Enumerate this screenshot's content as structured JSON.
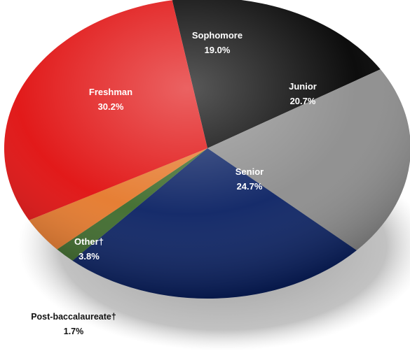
{
  "chart_data": {
    "type": "pie",
    "title": "",
    "slices": [
      {
        "label": "Sophomore",
        "value": 19.0,
        "value_label": "19.0%",
        "color": "#000000",
        "text_color": "#ffffff"
      },
      {
        "label": "Junior",
        "value": 20.7,
        "value_label": "20.7%",
        "color": "#8c8c8c",
        "text_color": "#ffffff"
      },
      {
        "label": "Senior",
        "value": 24.7,
        "value_label": "24.7%",
        "color": "#0a2163",
        "text_color": "#ffffff"
      },
      {
        "label": "Post-baccalaureate†",
        "value": 1.7,
        "value_label": "1.7%",
        "color": "#3d6a2a",
        "text_color": "#111111"
      },
      {
        "label": "Other†",
        "value": 3.8,
        "value_label": "3.8%",
        "color": "#e5782a",
        "text_color": "#ffffff"
      },
      {
        "label": "Freshman",
        "value": 30.2,
        "value_label": "30.2%",
        "color": "#e00e0e",
        "text_color": "#ffffff"
      }
    ],
    "style": "3d-tilted",
    "legend": "none"
  }
}
